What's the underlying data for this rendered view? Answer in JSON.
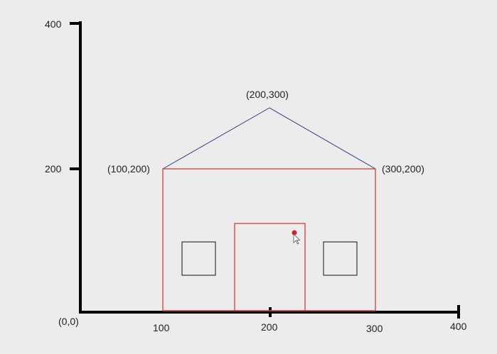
{
  "axes": {
    "y_ticks": [
      {
        "value": 400,
        "label": "400"
      },
      {
        "value": 200,
        "label": "200"
      }
    ],
    "x_ticks": [
      {
        "value": 100,
        "label": "100"
      },
      {
        "value": 200,
        "label": "200"
      },
      {
        "value": 300,
        "label": "300"
      },
      {
        "value": 400,
        "label": "400"
      }
    ],
    "origin_label": "(0,0)"
  },
  "points": {
    "apex": "(200,300)",
    "left": "(100,200)",
    "right": "(300,200)"
  },
  "colors": {
    "axis": "#000000",
    "house": "#d83a3a",
    "roof": "#2b3a7a",
    "window": "#111111",
    "dot": "#d0203a",
    "background": "#ececec"
  }
}
